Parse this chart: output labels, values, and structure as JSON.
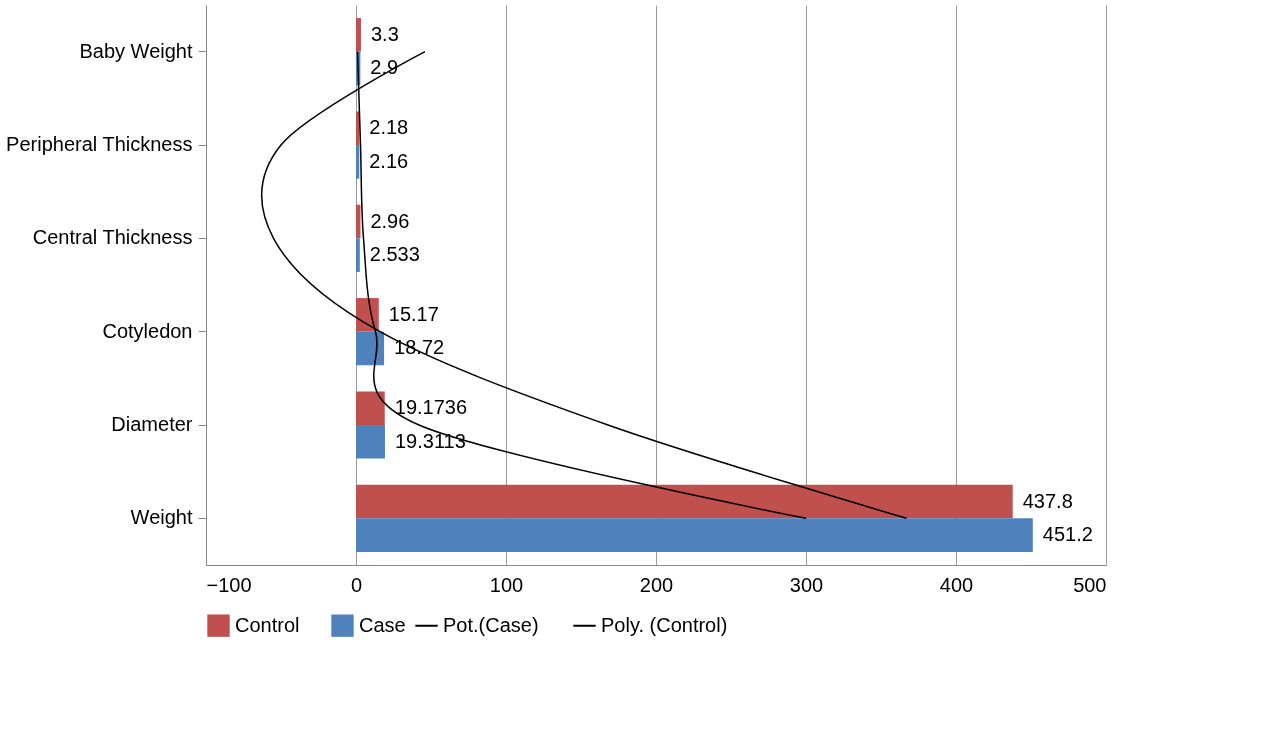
{
  "chart_data": {
    "type": "bar",
    "orientation": "horizontal",
    "categories": [
      "Baby Weight",
      "Peripheral Thickness",
      "Central Thickness",
      "Cotyledon",
      "Diameter",
      "Weight"
    ],
    "series": [
      {
        "name": "Control",
        "color": "#c0504d",
        "values": [
          3.3,
          2.18,
          2.96,
          15.17,
          19.1736,
          437.8
        ],
        "value_labels": [
          "3.3",
          "2.18",
          "2.96",
          "15.17",
          "19.1736",
          "437.8"
        ]
      },
      {
        "name": "Case",
        "color": "#4f81bd",
        "values": [
          2.9,
          2.16,
          2.533,
          18.72,
          19.3113,
          451.2
        ],
        "value_labels": [
          "2.9",
          "2.16",
          "2.533",
          "18.72",
          "19.3113",
          "451.2"
        ]
      },
      {
        "name": "Pot.(Case)",
        "type": "line",
        "color": "#000000",
        "values": [
          1,
          3,
          5,
          13,
          42,
          300
        ]
      },
      {
        "name": "Poly. (Control)",
        "type": "line",
        "color": "#000000",
        "values": [
          46,
          -50,
          -55,
          16,
          168,
          367
        ]
      }
    ],
    "xlim": [
      -100,
      500
    ],
    "xticks": [
      -100,
      0,
      100,
      200,
      300,
      400,
      500
    ],
    "grid": "x",
    "legend": "bottom"
  }
}
